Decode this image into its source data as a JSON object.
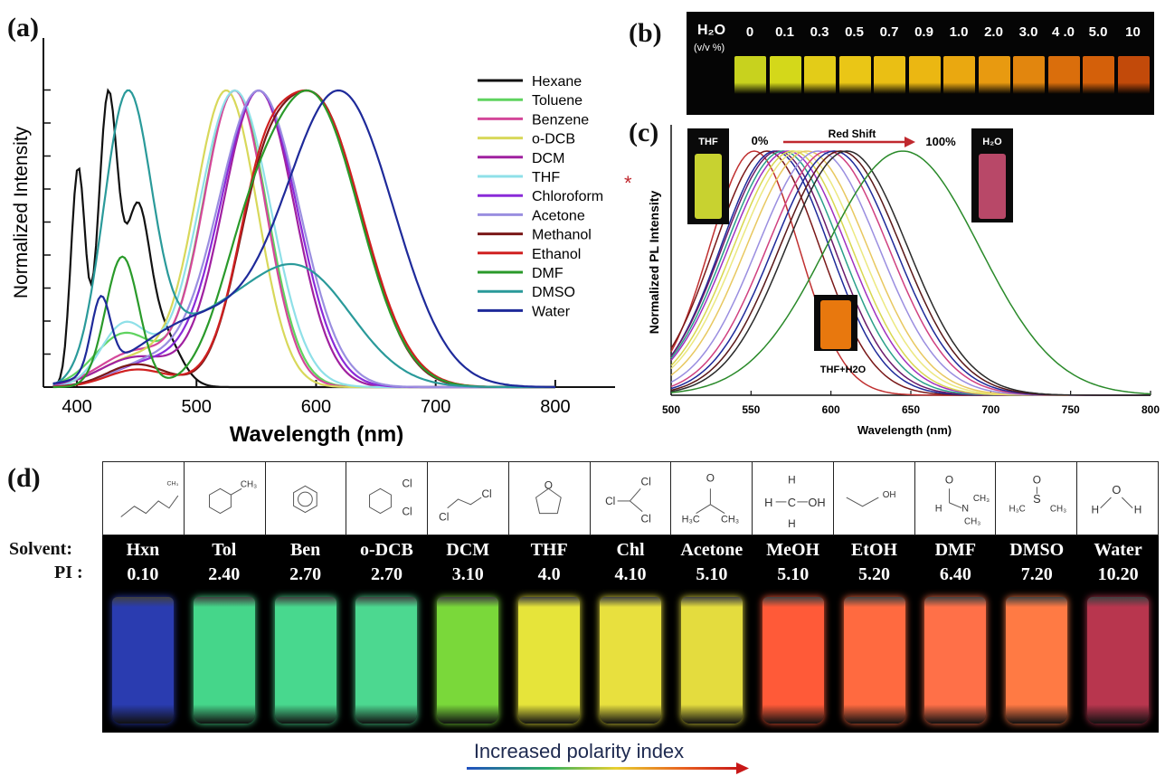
{
  "labels": {
    "a": "(a)",
    "b": "(b)",
    "c": "(c)",
    "d": "(d)"
  },
  "panel_a": {
    "xlabel": "Wavelength (nm)",
    "ylabel": "Normalized Intensity",
    "xticks": [
      "400",
      "500",
      "600",
      "700",
      "800"
    ],
    "legend": [
      "Hexane",
      "Toluene",
      "Benzene",
      "o-DCB",
      "DCM",
      "THF",
      "Chloroform",
      "Acetone",
      "Methanol",
      "Ethanol",
      "DMF",
      "DMSO",
      "Water"
    ],
    "colors": [
      "#111111",
      "#5fd35f",
      "#d4479a",
      "#d8d85a",
      "#a020a0",
      "#8fe0e8",
      "#8a2bd8",
      "#9a8ee0",
      "#7a1818",
      "#d02020",
      "#2a9a2a",
      "#2a9a9a",
      "#1e2a9a"
    ],
    "asterisk": "*"
  },
  "panel_b": {
    "header_top": "H₂O",
    "header_sub": "(v/v %)",
    "values": [
      "0",
      "0.1",
      "0.3",
      "0.5",
      "0.7",
      "0.9",
      "1.0",
      "2.0",
      "3.0",
      "4 .0",
      "5.0",
      "10"
    ],
    "vial_colors": [
      "#c8d21e",
      "#d4d81a",
      "#e3cc18",
      "#eac616",
      "#eabf14",
      "#ebb712",
      "#eaa810",
      "#e89a10",
      "#e2860e",
      "#da6e0c",
      "#d4600a",
      "#c24a0a"
    ]
  },
  "panel_c": {
    "xlabel": "Wavelength (nm)",
    "ylabel": "Normalized PL Intensity",
    "xticks": [
      "500",
      "550",
      "600",
      "650",
      "700",
      "750",
      "800"
    ],
    "annot_thf": "THF",
    "annot_start": "0%",
    "annot_shift": "Red Shift",
    "annot_end": "100%",
    "annot_h2o": "H₂O",
    "annot_mix": "THF+H2O"
  },
  "panel_d": {
    "row_solvent": "Solvent:",
    "row_pi": "PI :",
    "solvents": [
      "Hxn",
      "Tol",
      "Ben",
      "o-DCB",
      "DCM",
      "THF",
      "Chl",
      "Acetone",
      "MeOH",
      "EtOH",
      "DMF",
      "DMSO",
      "Water"
    ],
    "pi": [
      "0.10",
      "2.40",
      "2.70",
      "2.70",
      "3.10",
      "4.0",
      "4.10",
      "5.10",
      "5.10",
      "5.20",
      "6.40",
      "7.20",
      "10.20"
    ],
    "vial_colors": [
      "#2a3cb0",
      "#45d68a",
      "#48d88e",
      "#4cd890",
      "#7ad83a",
      "#e6e43a",
      "#e8e03e",
      "#e4dc3e",
      "#ff5a38",
      "#ff6a40",
      "#ff7048",
      "#ff7a44",
      "#b8364e"
    ],
    "structure_texts": [
      [
        "CH₃"
      ],
      [
        "CH₃"
      ],
      [],
      [
        "Cl",
        "Cl"
      ],
      [
        "Cl",
        "Cl"
      ],
      [
        "O"
      ],
      [
        "Cl",
        "Cl",
        "Cl"
      ],
      [
        "O",
        "H₃C",
        "CH₃"
      ],
      [
        "H",
        "H",
        "H",
        "C",
        "OH"
      ],
      [
        "OH"
      ],
      [
        "O",
        "H",
        "N",
        "CH₃",
        "CH₃"
      ],
      [
        "O",
        "S",
        "H₃C",
        "CH₃"
      ],
      [
        "O",
        "H",
        "H"
      ]
    ],
    "arrow_text": "Increased polarity index"
  }
}
